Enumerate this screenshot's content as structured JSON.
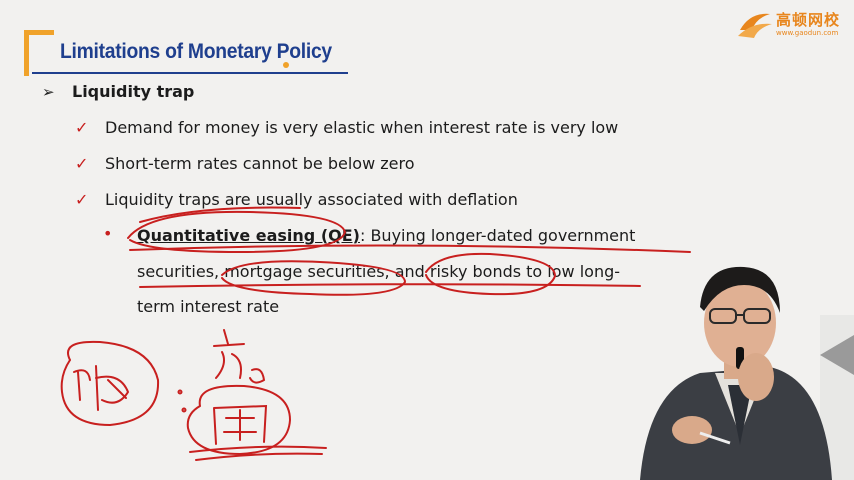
{
  "slide": {
    "title": "Limitations of Monetary Policy",
    "heading": "Liquidity trap",
    "points": [
      "Demand for money is very elastic when interest rate is very low",
      "Short-term rates cannot be below zero",
      "Liquidity traps are usually associated with deflation"
    ],
    "sub_point": {
      "term": "Quantitative easing (QE)",
      "line1_rest": ": Buying longer-dated government",
      "line2": "securities, mortgage securities, and risky bonds to low long-",
      "line3": "term interest rate"
    }
  },
  "logo": {
    "name": "高顿网校",
    "url": "www.gaodun.com"
  },
  "colors": {
    "title": "#1f3f8e",
    "accent": "#f0a22a",
    "check": "#c8201f",
    "ink": "#c8201f",
    "logo": "#e8861d"
  },
  "icons": {
    "heading_marker": "arrow-bullet-icon",
    "point_marker": "checkmark-icon"
  }
}
